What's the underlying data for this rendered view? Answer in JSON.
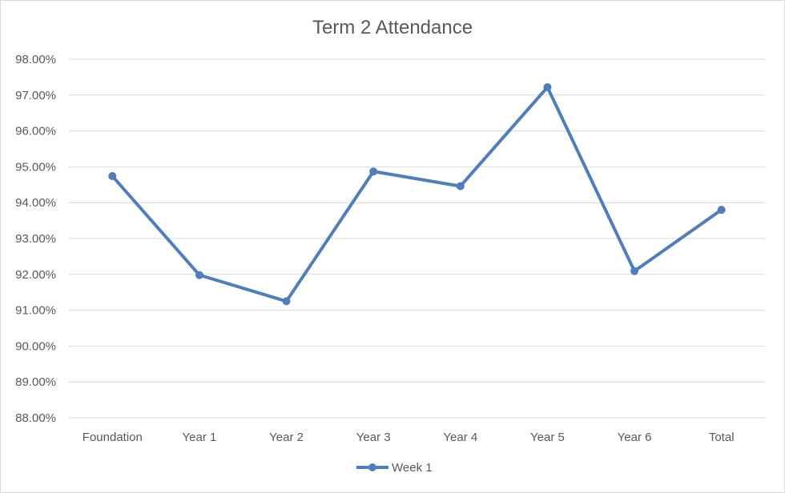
{
  "chart_data": {
    "type": "line",
    "title": "Term 2 Attendance",
    "categories": [
      "Foundation",
      "Year 1",
      "Year 2",
      "Year 3",
      "Year 4",
      "Year 5",
      "Year 6",
      "Total"
    ],
    "series": [
      {
        "name": "Week 1",
        "values": [
          0.9474,
          0.9198,
          0.9125,
          0.9487,
          0.9446,
          0.9722,
          0.9209,
          0.938
        ],
        "color": "#4e7ebb"
      }
    ],
    "ylim": [
      0.88,
      0.98
    ],
    "yticks": [
      "98.00%",
      "97.00%",
      "96.00%",
      "95.00%",
      "94.00%",
      "93.00%",
      "92.00%",
      "91.00%",
      "90.00%",
      "89.00%",
      "88.00%"
    ],
    "grid": true,
    "legend_position": "bottom"
  }
}
